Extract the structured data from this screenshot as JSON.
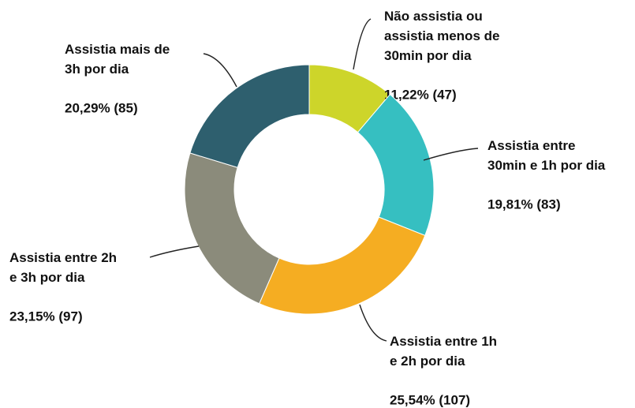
{
  "chart_data": {
    "type": "donut",
    "categories": [
      "Não assistia ou assistia menos de 30min por dia",
      "Assistia entre 30min e 1h por dia",
      "Assistia entre 1h e 2h por dia",
      "Assistia entre 2h e 3h por dia",
      "Assistia mais de 3h por dia"
    ],
    "values": [
      11.22,
      19.81,
      25.54,
      23.15,
      20.29
    ],
    "value_labels": [
      "11,22% (47)",
      "19,81% (83)",
      "25,54% (107)",
      "23,15% (97)",
      "20,29% (85)"
    ],
    "colors": [
      "#cdd52a",
      "#36bfc1",
      "#f5ad22",
      "#8b8b7b",
      "#2e5f6e"
    ]
  }
}
